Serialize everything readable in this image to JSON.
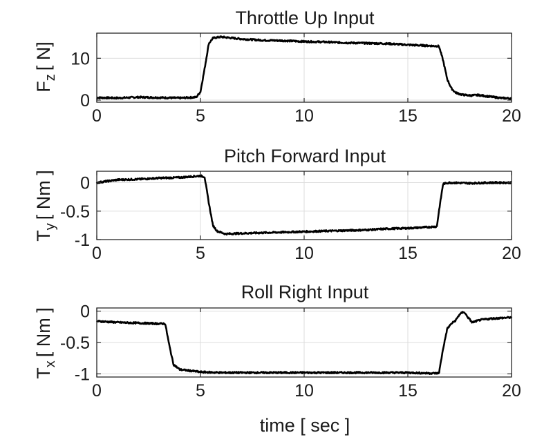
{
  "chart_data": [
    {
      "type": "line",
      "title": "Throttle Up Input",
      "ylabel_main": "F",
      "ylabel_sub": "z",
      "ylabel_unit": "[ N]",
      "xlim": [
        0,
        20
      ],
      "ylim": [
        -0.5,
        16
      ],
      "xticks": [
        "0",
        "5",
        "10",
        "15",
        "20"
      ],
      "xtick_values": [
        0,
        5,
        10,
        15,
        20
      ],
      "yticks": [
        "0",
        "10"
      ],
      "ytick_values": [
        0,
        10
      ],
      "grid": true,
      "series": [
        {
          "x": [
            0,
            1,
            2,
            3,
            4,
            4.8,
            5.0,
            5.2,
            5.4,
            5.6,
            5.8,
            6,
            7,
            8,
            9,
            10,
            11,
            12,
            13,
            14,
            15,
            16,
            16.5,
            16.7,
            16.9,
            17.1,
            17.3,
            17.6,
            18,
            18.4,
            19,
            19.5,
            20
          ],
          "y": [
            0.6,
            0.5,
            0.7,
            0.6,
            0.5,
            0.7,
            2.0,
            7.5,
            13.5,
            14.8,
            15.0,
            15.1,
            14.6,
            14.3,
            14.2,
            14.0,
            13.9,
            13.7,
            13.6,
            13.5,
            13.2,
            13.0,
            12.9,
            9.5,
            5.0,
            2.8,
            1.8,
            1.3,
            1.1,
            1.2,
            0.8,
            0.5,
            0.4
          ]
        }
      ]
    },
    {
      "type": "line",
      "title": "Pitch Forward Input",
      "ylabel_main": "T",
      "ylabel_sub": "y",
      "ylabel_unit": "[ Nm ]",
      "xlim": [
        0,
        20
      ],
      "ylim": [
        -1,
        0.2
      ],
      "xticks": [
        "0",
        "5",
        "10",
        "15",
        "20"
      ],
      "xtick_values": [
        0,
        5,
        10,
        15,
        20
      ],
      "yticks": [
        "0",
        "-0.5",
        "-1"
      ],
      "ytick_values": [
        0,
        -0.5,
        -1
      ],
      "grid": true,
      "series": [
        {
          "x": [
            0,
            1,
            2,
            3,
            4,
            5,
            5.2,
            5.4,
            5.6,
            5.8,
            6.2,
            7,
            8,
            9,
            10,
            11,
            12,
            13,
            14,
            15,
            16,
            16.4,
            16.5,
            16.7,
            17,
            18,
            19,
            20
          ],
          "y": [
            0.0,
            0.05,
            0.06,
            0.08,
            0.09,
            0.12,
            0.1,
            -0.35,
            -0.75,
            -0.85,
            -0.9,
            -0.89,
            -0.88,
            -0.87,
            -0.86,
            -0.85,
            -0.84,
            -0.83,
            -0.81,
            -0.8,
            -0.78,
            -0.77,
            -0.5,
            -0.02,
            0.0,
            -0.01,
            0.0,
            0.0
          ]
        }
      ]
    },
    {
      "type": "line",
      "title": "Roll Right Input",
      "ylabel_main": "T",
      "ylabel_sub": "x",
      "ylabel_unit": "[ Nm ]",
      "xlabel": "time [ sec ]",
      "xlim": [
        0,
        20
      ],
      "ylim": [
        -1.05,
        0.05
      ],
      "xticks": [
        "0",
        "5",
        "10",
        "15",
        "20"
      ],
      "xtick_values": [
        0,
        5,
        10,
        15,
        20
      ],
      "yticks": [
        "0",
        "-0.5",
        "-1"
      ],
      "ytick_values": [
        0,
        -0.5,
        -1
      ],
      "grid": true,
      "series": [
        {
          "x": [
            0,
            1,
            2,
            3,
            3.3,
            3.5,
            3.7,
            4.0,
            4.5,
            5,
            6,
            7,
            8,
            9,
            10,
            11,
            12,
            13,
            14,
            15,
            16,
            16.5,
            16.7,
            16.9,
            17.1,
            17.3,
            17.5,
            17.7,
            17.9,
            18.1,
            18.5,
            19,
            20
          ],
          "y": [
            -0.16,
            -0.18,
            -0.19,
            -0.2,
            -0.2,
            -0.55,
            -0.85,
            -0.93,
            -0.95,
            -0.97,
            -0.98,
            -0.98,
            -0.98,
            -0.98,
            -0.98,
            -0.98,
            -0.98,
            -0.98,
            -0.98,
            -0.98,
            -0.99,
            -0.99,
            -0.6,
            -0.28,
            -0.2,
            -0.15,
            -0.05,
            -0.01,
            -0.1,
            -0.18,
            -0.14,
            -0.12,
            -0.1
          ]
        }
      ]
    }
  ]
}
